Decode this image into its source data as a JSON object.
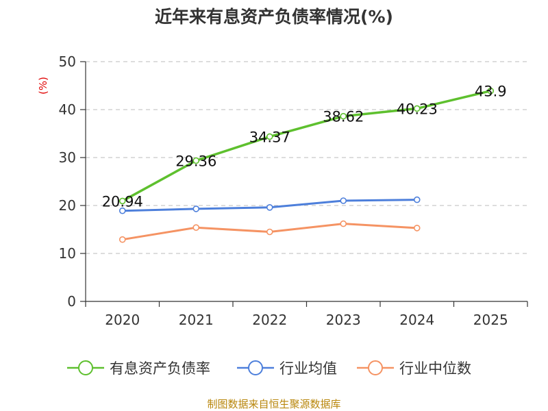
{
  "colors": {
    "axis": "#333333",
    "grid": "#bbbbbb",
    "ylabel": "#e00000",
    "source": "#b8860b"
  },
  "chart_data": {
    "type": "line",
    "title": "近年来有息资产负债率情况(%)",
    "ylabel": "(%)",
    "xlabel": "",
    "categories": [
      "2020",
      "2021",
      "2022",
      "2023",
      "2024",
      "2025"
    ],
    "ylim": [
      0,
      50
    ],
    "yticks": [
      0,
      10,
      20,
      30,
      40,
      50
    ],
    "grid": true,
    "legend_position": "bottom",
    "series": [
      {
        "name": "有息资产负债率",
        "color": "#5ec02e",
        "values": [
          20.94,
          29.36,
          34.37,
          38.62,
          40.23,
          43.9
        ],
        "labels": [
          "20.94",
          "29.36",
          "34.37",
          "38.62",
          "40.23",
          "43.9"
        ]
      },
      {
        "name": "行业均值",
        "color": "#4d7fdb",
        "values": [
          18.9,
          19.3,
          19.6,
          21.0,
          21.2,
          null
        ]
      },
      {
        "name": "行业中位数",
        "color": "#f59363",
        "values": [
          12.9,
          15.4,
          14.5,
          16.2,
          15.3,
          null
        ]
      }
    ],
    "source": "制图数据来自恒生聚源数据库"
  }
}
